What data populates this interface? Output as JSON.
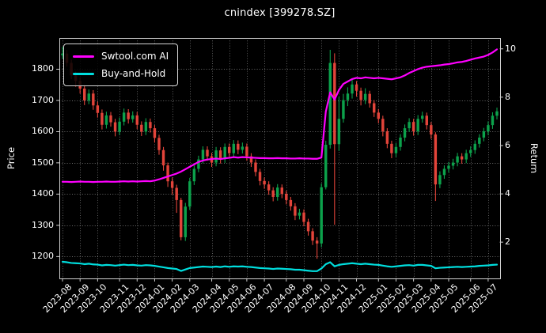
{
  "title": "cnindex [399278.SZ]",
  "axes": {
    "left_label": "Price",
    "right_label": "Return"
  },
  "colors": {
    "background": "#000000",
    "text": "#ffffff",
    "grid": "#ffffff",
    "spine": "#cfcfcf"
  },
  "chart_data": {
    "type": "candlestick+line",
    "title": "cnindex [399278.SZ]",
    "grid": true,
    "legend_position": "upper left",
    "price_axis": {
      "label": "Price",
      "ticks": [
        1200,
        1300,
        1400,
        1500,
        1600,
        1700,
        1800
      ],
      "ylim": [
        1130,
        1900
      ]
    },
    "return_axis": {
      "label": "Return",
      "ticks": [
        2,
        4,
        6,
        8,
        10
      ],
      "ylim": [
        0.5,
        10.45
      ]
    },
    "x_tick_labels": [
      "2023-08",
      "2023-09",
      "2023-10",
      "2023-11",
      "2023-12",
      "2024-01",
      "2024-02",
      "2024-03",
      "2024-04",
      "2024-05",
      "2024-06",
      "2024-07",
      "2024-08",
      "2024-09",
      "2024-10",
      "2024-11",
      "2024-12",
      "2025-01",
      "2025-02",
      "2025-03",
      "2025-04",
      "2025-05",
      "2025-06",
      "2025-07"
    ],
    "x_tick_index": [
      0,
      4,
      8,
      13,
      17,
      21,
      25,
      29,
      34,
      38,
      42,
      46,
      51,
      55,
      59,
      63,
      67,
      72,
      76,
      80,
      84,
      88,
      93,
      97
    ],
    "candles": {
      "up_color": "#0ca14b",
      "down_color": "#e2443a",
      "ohlc": [
        [
          1845,
          1872,
          1833,
          1850
        ],
        [
          1850,
          1862,
          1808,
          1820
        ],
        [
          1820,
          1831,
          1768,
          1780
        ],
        [
          1780,
          1792,
          1744,
          1762
        ],
        [
          1762,
          1773,
          1722,
          1738
        ],
        [
          1738,
          1749,
          1685,
          1700
        ],
        [
          1700,
          1735,
          1688,
          1722
        ],
        [
          1722,
          1733,
          1670,
          1684
        ],
        [
          1684,
          1696,
          1645,
          1660
        ],
        [
          1660,
          1671,
          1607,
          1622
        ],
        [
          1622,
          1664,
          1610,
          1652
        ],
        [
          1652,
          1663,
          1616,
          1630
        ],
        [
          1630,
          1641,
          1585,
          1600
        ],
        [
          1600,
          1645,
          1589,
          1632
        ],
        [
          1632,
          1674,
          1620,
          1661
        ],
        [
          1661,
          1672,
          1626,
          1640
        ],
        [
          1640,
          1665,
          1629,
          1652
        ],
        [
          1652,
          1663,
          1608,
          1622
        ],
        [
          1622,
          1633,
          1586,
          1600
        ],
        [
          1600,
          1643,
          1589,
          1631
        ],
        [
          1631,
          1642,
          1597,
          1611
        ],
        [
          1611,
          1621,
          1565,
          1580
        ],
        [
          1580,
          1590,
          1526,
          1541
        ],
        [
          1541,
          1551,
          1475,
          1492
        ],
        [
          1492,
          1501,
          1423,
          1441
        ],
        [
          1441,
          1453,
          1398,
          1420
        ],
        [
          1420,
          1430,
          1340,
          1381
        ],
        [
          1381,
          1388,
          1252,
          1262
        ],
        [
          1262,
          1372,
          1250,
          1360
        ],
        [
          1360,
          1452,
          1349,
          1441
        ],
        [
          1441,
          1492,
          1429,
          1481
        ],
        [
          1481,
          1523,
          1470,
          1511
        ],
        [
          1511,
          1553,
          1499,
          1542
        ],
        [
          1542,
          1553,
          1507,
          1521
        ],
        [
          1521,
          1532,
          1487,
          1501
        ],
        [
          1501,
          1551,
          1489,
          1540
        ],
        [
          1540,
          1550,
          1498,
          1512
        ],
        [
          1512,
          1562,
          1500,
          1551
        ],
        [
          1551,
          1562,
          1517,
          1531
        ],
        [
          1531,
          1573,
          1519,
          1561
        ],
        [
          1561,
          1572,
          1528,
          1542
        ],
        [
          1542,
          1565,
          1530,
          1552
        ],
        [
          1552,
          1562,
          1507,
          1521
        ],
        [
          1521,
          1531,
          1487,
          1501
        ],
        [
          1501,
          1511,
          1457,
          1471
        ],
        [
          1471,
          1481,
          1428,
          1442
        ],
        [
          1442,
          1453,
          1417,
          1431
        ],
        [
          1431,
          1441,
          1398,
          1412
        ],
        [
          1412,
          1422,
          1377,
          1391
        ],
        [
          1391,
          1432,
          1379,
          1421
        ],
        [
          1421,
          1431,
          1387,
          1401
        ],
        [
          1401,
          1411,
          1367,
          1381
        ],
        [
          1381,
          1391,
          1347,
          1361
        ],
        [
          1361,
          1371,
          1317,
          1331
        ],
        [
          1331,
          1353,
          1319,
          1341
        ],
        [
          1341,
          1351,
          1297,
          1311
        ],
        [
          1311,
          1321,
          1267,
          1281
        ],
        [
          1281,
          1291,
          1237,
          1251
        ],
        [
          1251,
          1262,
          1193,
          1242
        ],
        [
          1242,
          1434,
          1230,
          1422
        ],
        [
          1422,
          1571,
          1415,
          1558
        ],
        [
          1558,
          1862,
          1546,
          1820
        ],
        [
          1820,
          1851,
          1302,
          1560
        ],
        [
          1560,
          1711,
          1538,
          1641
        ],
        [
          1641,
          1721,
          1629,
          1701
        ],
        [
          1701,
          1742,
          1682,
          1722
        ],
        [
          1722,
          1770,
          1706,
          1751
        ],
        [
          1751,
          1762,
          1712,
          1731
        ],
        [
          1731,
          1741,
          1684,
          1701
        ],
        [
          1701,
          1739,
          1688,
          1721
        ],
        [
          1721,
          1731,
          1677,
          1691
        ],
        [
          1691,
          1701,
          1647,
          1661
        ],
        [
          1661,
          1672,
          1627,
          1641
        ],
        [
          1641,
          1651,
          1585,
          1601
        ],
        [
          1601,
          1611,
          1547,
          1561
        ],
        [
          1561,
          1571,
          1515,
          1531
        ],
        [
          1531,
          1563,
          1519,
          1551
        ],
        [
          1551,
          1592,
          1539,
          1581
        ],
        [
          1581,
          1623,
          1569,
          1611
        ],
        [
          1611,
          1643,
          1599,
          1631
        ],
        [
          1631,
          1641,
          1587,
          1601
        ],
        [
          1601,
          1653,
          1589,
          1641
        ],
        [
          1641,
          1664,
          1629,
          1651
        ],
        [
          1651,
          1661,
          1607,
          1621
        ],
        [
          1621,
          1631,
          1577,
          1591
        ],
        [
          1591,
          1598,
          1378,
          1431
        ],
        [
          1431,
          1473,
          1419,
          1461
        ],
        [
          1461,
          1492,
          1449,
          1481
        ],
        [
          1481,
          1503,
          1469,
          1491
        ],
        [
          1491,
          1513,
          1479,
          1501
        ],
        [
          1501,
          1532,
          1489,
          1521
        ],
        [
          1521,
          1531,
          1497,
          1511
        ],
        [
          1511,
          1542,
          1499,
          1531
        ],
        [
          1531,
          1553,
          1519,
          1541
        ],
        [
          1541,
          1572,
          1529,
          1561
        ],
        [
          1561,
          1592,
          1549,
          1581
        ],
        [
          1581,
          1612,
          1569,
          1601
        ],
        [
          1601,
          1633,
          1589,
          1621
        ],
        [
          1621,
          1662,
          1609,
          1651
        ],
        [
          1651,
          1677,
          1639,
          1665
        ]
      ]
    },
    "series": [
      {
        "name": "Swtool.com AI",
        "axis": "return",
        "color": "#ff00ff",
        "values": [
          4.5,
          4.5,
          4.49,
          4.5,
          4.51,
          4.5,
          4.5,
          4.49,
          4.5,
          4.5,
          4.51,
          4.5,
          4.5,
          4.51,
          4.52,
          4.51,
          4.52,
          4.51,
          4.52,
          4.53,
          4.52,
          4.55,
          4.6,
          4.66,
          4.72,
          4.78,
          4.84,
          4.92,
          5.02,
          5.12,
          5.22,
          5.32,
          5.38,
          5.42,
          5.44,
          5.46,
          5.44,
          5.47,
          5.49,
          5.52,
          5.5,
          5.52,
          5.51,
          5.5,
          5.49,
          5.48,
          5.48,
          5.47,
          5.47,
          5.48,
          5.47,
          5.47,
          5.46,
          5.46,
          5.47,
          5.46,
          5.46,
          5.45,
          5.45,
          5.5,
          7.4,
          8.2,
          7.9,
          8.3,
          8.55,
          8.65,
          8.75,
          8.8,
          8.78,
          8.82,
          8.8,
          8.78,
          8.8,
          8.78,
          8.76,
          8.74,
          8.78,
          8.82,
          8.9,
          9.0,
          9.08,
          9.16,
          9.22,
          9.26,
          9.28,
          9.3,
          9.32,
          9.35,
          9.37,
          9.4,
          9.44,
          9.46,
          9.5,
          9.55,
          9.6,
          9.64,
          9.68,
          9.75,
          9.85,
          9.98
        ]
      },
      {
        "name": "Buy-and-Hold",
        "axis": "return",
        "color": "#00dede",
        "values": [
          1.19,
          1.17,
          1.14,
          1.13,
          1.12,
          1.09,
          1.11,
          1.08,
          1.07,
          1.04,
          1.06,
          1.05,
          1.03,
          1.05,
          1.07,
          1.05,
          1.06,
          1.04,
          1.03,
          1.05,
          1.04,
          1.02,
          0.99,
          0.96,
          0.93,
          0.91,
          0.89,
          0.81,
          0.87,
          0.93,
          0.95,
          0.97,
          0.99,
          0.98,
          0.97,
          0.99,
          0.97,
          1.0,
          0.98,
          1.0,
          0.99,
          1.0,
          0.98,
          0.97,
          0.95,
          0.93,
          0.92,
          0.91,
          0.89,
          0.91,
          0.9,
          0.89,
          0.88,
          0.86,
          0.86,
          0.84,
          0.82,
          0.8,
          0.8,
          0.91,
          1.09,
          1.17,
          1.0,
          1.06,
          1.09,
          1.11,
          1.13,
          1.11,
          1.09,
          1.11,
          1.09,
          1.07,
          1.06,
          1.03,
          1.0,
          0.98,
          1.0,
          1.02,
          1.04,
          1.05,
          1.03,
          1.06,
          1.06,
          1.04,
          1.02,
          0.92,
          0.94,
          0.95,
          0.96,
          0.97,
          0.98,
          0.97,
          0.98,
          0.99,
          1.0,
          1.02,
          1.03,
          1.04,
          1.06,
          1.07
        ]
      }
    ]
  }
}
